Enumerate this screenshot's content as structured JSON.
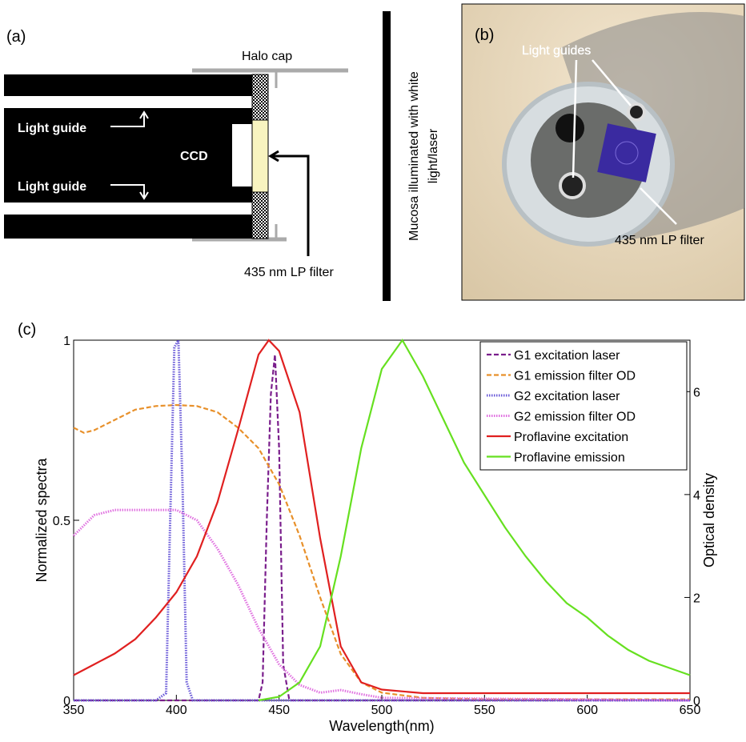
{
  "panel_a": {
    "label": "(a)",
    "halo_cap": "Halo cap",
    "light_guide_top": "Light guide",
    "light_guide_bottom": "Light guide",
    "ccd": "CCD",
    "filter": "435 nm LP filter"
  },
  "divider": {
    "lines": [
      "Mucosa illuminated with white",
      "light/laser"
    ]
  },
  "panel_b": {
    "label": "(b)",
    "light_guides": "Light guides",
    "filter": "435 nm LP filter"
  },
  "panel_c": {
    "label": "(c)"
  },
  "chart_data": {
    "type": "line",
    "xlabel": "Wavelength(nm)",
    "ylabel": "Normalized spectra",
    "y2label": "Optical density",
    "xlim": [
      350,
      650
    ],
    "xticks": [
      350,
      400,
      450,
      500,
      550,
      600,
      650
    ],
    "ylim": [
      0,
      1
    ],
    "yticks": [
      0,
      0.5,
      1
    ],
    "y2lim": [
      0,
      7
    ],
    "y2ticks": [
      0,
      2,
      4,
      6
    ],
    "grid": false,
    "legend": "upper right",
    "series": [
      {
        "name": "G1 excitation laser",
        "color": "#7a1e8c",
        "dash": "dashed",
        "x": [
          350,
          440,
          442,
          444,
          446,
          448,
          450,
          452,
          455,
          650
        ],
        "values": [
          0,
          0,
          0.05,
          0.5,
          0.85,
          0.96,
          0.7,
          0.1,
          0,
          0
        ]
      },
      {
        "name": "G1 emission filter OD",
        "color": "#e8902a",
        "dash": "dashed",
        "axis": "y2",
        "x": [
          350,
          355,
          360,
          370,
          380,
          390,
          400,
          410,
          420,
          430,
          440,
          450,
          460,
          470,
          480,
          490,
          500,
          520,
          550,
          650
        ],
        "values": [
          5.3,
          5.2,
          5.25,
          5.45,
          5.65,
          5.72,
          5.74,
          5.72,
          5.6,
          5.3,
          4.9,
          4.2,
          3.2,
          2.0,
          0.9,
          0.35,
          0.15,
          0.05,
          0.02,
          0.02
        ]
      },
      {
        "name": "G2 excitation laser",
        "color": "#6a5ad8",
        "dash": "dotted",
        "x": [
          350,
          390,
          395,
          397,
          399,
          401,
          403,
          405,
          408,
          650
        ],
        "values": [
          0,
          0,
          0.02,
          0.5,
          0.98,
          1.0,
          0.6,
          0.05,
          0,
          0
        ]
      },
      {
        "name": "G2 emission filter OD",
        "color": "#e070e0",
        "dash": "dotted",
        "axis": "y2",
        "x": [
          350,
          360,
          370,
          400,
          410,
          420,
          430,
          440,
          450,
          460,
          470,
          480,
          490,
          500,
          650
        ],
        "values": [
          3.2,
          3.6,
          3.7,
          3.7,
          3.5,
          2.95,
          2.25,
          1.4,
          0.7,
          0.3,
          0.15,
          0.2,
          0.12,
          0.05,
          0
        ]
      },
      {
        "name": "Proflavine excitation",
        "color": "#e02020",
        "dash": "solid",
        "x": [
          350,
          360,
          370,
          380,
          390,
          400,
          410,
          420,
          430,
          440,
          445,
          450,
          460,
          470,
          480,
          490,
          500,
          520,
          550,
          600,
          650
        ],
        "values": [
          0.07,
          0.1,
          0.13,
          0.17,
          0.23,
          0.3,
          0.4,
          0.55,
          0.75,
          0.96,
          1.0,
          0.97,
          0.8,
          0.45,
          0.15,
          0.05,
          0.03,
          0.02,
          0.02,
          0.02,
          0.02
        ]
      },
      {
        "name": "Proflavine emission",
        "color": "#66e020",
        "dash": "solid",
        "x": [
          440,
          450,
          460,
          470,
          480,
          490,
          500,
          510,
          520,
          530,
          540,
          550,
          560,
          570,
          580,
          590,
          600,
          610,
          620,
          630,
          640,
          650
        ],
        "values": [
          0,
          0.01,
          0.05,
          0.15,
          0.4,
          0.7,
          0.92,
          1.0,
          0.9,
          0.78,
          0.66,
          0.57,
          0.48,
          0.4,
          0.33,
          0.27,
          0.23,
          0.18,
          0.14,
          0.11,
          0.09,
          0.07
        ]
      }
    ]
  }
}
